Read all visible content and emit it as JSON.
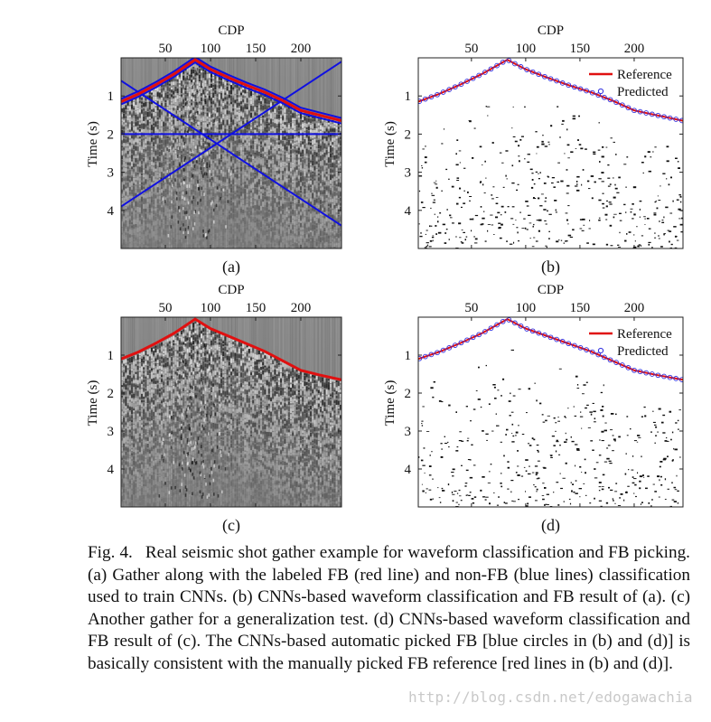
{
  "panels": [
    {
      "id": "a",
      "kind": "gather",
      "label": "(a)",
      "x_axis_label": "CDP",
      "y_axis_label": "Time (s)",
      "x_ticks": [
        50,
        100,
        150,
        200
      ],
      "y_ticks": [
        1,
        2,
        3,
        4
      ],
      "x_range": [
        1,
        245
      ],
      "y_range": [
        0,
        5
      ],
      "fb_curve": {
        "cdp": [
          1,
          20,
          40,
          60,
          83,
          100,
          120,
          140,
          160,
          180,
          200,
          220,
          245
        ],
        "time_s": [
          1.15,
          0.95,
          0.7,
          0.42,
          0.05,
          0.3,
          0.52,
          0.72,
          0.9,
          1.12,
          1.38,
          1.5,
          1.65
        ]
      },
      "fb_color": "#e01010",
      "nonfb_color": "#1010e0",
      "nonfb_lines": [
        {
          "cdp": [
            1,
            245
          ],
          "time_s": [
            0.6,
            4.4
          ]
        },
        {
          "cdp": [
            1,
            245
          ],
          "time_s": [
            3.9,
            0.1
          ]
        },
        {
          "cdp": [
            1,
            245
          ],
          "time_s": [
            2.0,
            2.0
          ]
        }
      ]
    },
    {
      "id": "b",
      "kind": "classification",
      "label": "(b)",
      "x_axis_label": "CDP",
      "y_axis_label": "Time (s)",
      "x_ticks": [
        50,
        100,
        150,
        200
      ],
      "y_ticks": [
        1,
        2,
        3,
        4
      ],
      "x_range": [
        1,
        245
      ],
      "y_range": [
        0,
        5
      ],
      "legend": [
        {
          "label": "Reference",
          "color": "#e01010"
        },
        {
          "label": "Predicted",
          "color": "#3030e0"
        }
      ],
      "legend_position": "top-right"
    },
    {
      "id": "c",
      "kind": "gather",
      "label": "(c)",
      "x_axis_label": "CDP",
      "y_axis_label": "Time (s)",
      "x_ticks": [
        50,
        100,
        150,
        200
      ],
      "y_ticks": [
        1,
        2,
        3,
        4
      ],
      "x_range": [
        1,
        245
      ],
      "y_range": [
        0,
        5
      ],
      "fb_curve": {
        "cdp": [
          1,
          20,
          40,
          60,
          83,
          100,
          120,
          140,
          160,
          180,
          200,
          220,
          245
        ],
        "time_s": [
          1.1,
          0.92,
          0.68,
          0.42,
          0.05,
          0.3,
          0.5,
          0.7,
          0.9,
          1.15,
          1.4,
          1.52,
          1.65
        ]
      },
      "fb_color": "#e01010"
    },
    {
      "id": "d",
      "kind": "classification",
      "label": "(d)",
      "x_axis_label": "CDP",
      "y_axis_label": "Time (s)",
      "x_ticks": [
        50,
        100,
        150,
        200
      ],
      "y_ticks": [
        1,
        2,
        3,
        4
      ],
      "x_range": [
        1,
        245
      ],
      "y_range": [
        0,
        5
      ],
      "legend": [
        {
          "label": "Reference",
          "color": "#e01010"
        },
        {
          "label": "Predicted",
          "color": "#3030e0"
        }
      ],
      "legend_position": "top-right"
    }
  ],
  "caption": {
    "label": "Fig. 4.",
    "text": "Real seismic shot gather example for waveform classification and FB picking. (a) Gather along with the labeled FB (red line) and non-FB (blue lines) classification used to train CNNs. (b) CNNs-based waveform classification and FB result of (a). (c) Another gather for a generalization test. (d) CNNs-based waveform classification and FB result of (c). The CNNs-based automatic picked FB [blue circles in (b) and (d)] is basically consistent with the manually picked FB reference [red lines in (b) and (d)]."
  },
  "watermark": "http://blog.csdn.net/edogawachia"
}
